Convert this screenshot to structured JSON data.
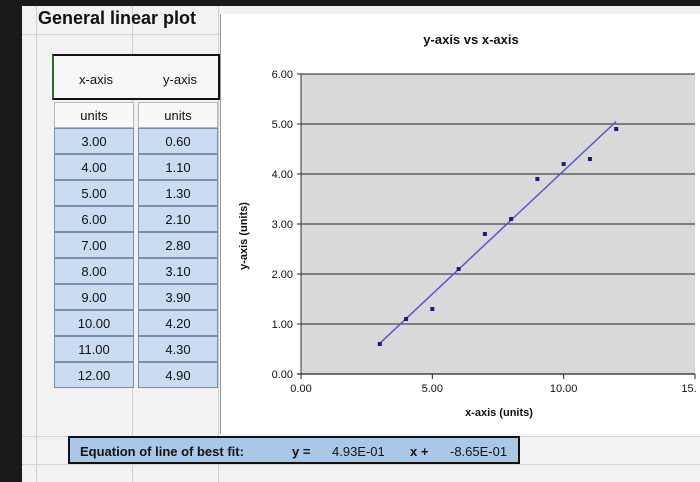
{
  "sheet": {
    "title": "General linear plot"
  },
  "table": {
    "x_header": "x-axis",
    "y_header": "y-axis",
    "x_units": "units",
    "y_units": "units",
    "rows": [
      {
        "x": "3.00",
        "y": "0.60"
      },
      {
        "x": "4.00",
        "y": "1.10"
      },
      {
        "x": "5.00",
        "y": "1.30"
      },
      {
        "x": "6.00",
        "y": "2.10"
      },
      {
        "x": "7.00",
        "y": "2.80"
      },
      {
        "x": "8.00",
        "y": "3.10"
      },
      {
        "x": "9.00",
        "y": "3.90"
      },
      {
        "x": "10.00",
        "y": "4.20"
      },
      {
        "x": "11.00",
        "y": "4.30"
      },
      {
        "x": "12.00",
        "y": "4.90"
      }
    ]
  },
  "equation": {
    "label": "Equation of line of best fit:",
    "y_eq": "y =",
    "slope": "4.93E-01",
    "x_plus": "x +",
    "intercept": "-8.65E-01"
  },
  "chart_data": {
    "type": "scatter",
    "title": "y-axis vs x-axis",
    "xlabel": "x-axis (units)",
    "ylabel": "y-axis (units)",
    "xlim": [
      0,
      15
    ],
    "ylim": [
      0,
      6
    ],
    "x_ticks": [
      "0.00",
      "5.00",
      "10.00",
      "15."
    ],
    "y_ticks": [
      "0.00",
      "1.00",
      "2.00",
      "3.00",
      "4.00",
      "5.00",
      "6.00"
    ],
    "x_tick_values": [
      0,
      5,
      10,
      15
    ],
    "y_tick_values": [
      0,
      1,
      2,
      3,
      4,
      5,
      6
    ],
    "grid": true,
    "plot_bg": "#d9d9d9",
    "marker_color": "#1a1a8a",
    "line_color": "#5b55d8",
    "points": [
      {
        "x": 3,
        "y": 0.6
      },
      {
        "x": 4,
        "y": 1.1
      },
      {
        "x": 5,
        "y": 1.3
      },
      {
        "x": 6,
        "y": 2.1
      },
      {
        "x": 7,
        "y": 2.8
      },
      {
        "x": 8,
        "y": 3.1
      },
      {
        "x": 9,
        "y": 3.9
      },
      {
        "x": 10,
        "y": 4.2
      },
      {
        "x": 11,
        "y": 4.3
      },
      {
        "x": 12,
        "y": 4.9
      }
    ],
    "fit": {
      "slope": 0.493,
      "intercept": -0.865,
      "x_start": 3,
      "x_end": 12
    }
  }
}
